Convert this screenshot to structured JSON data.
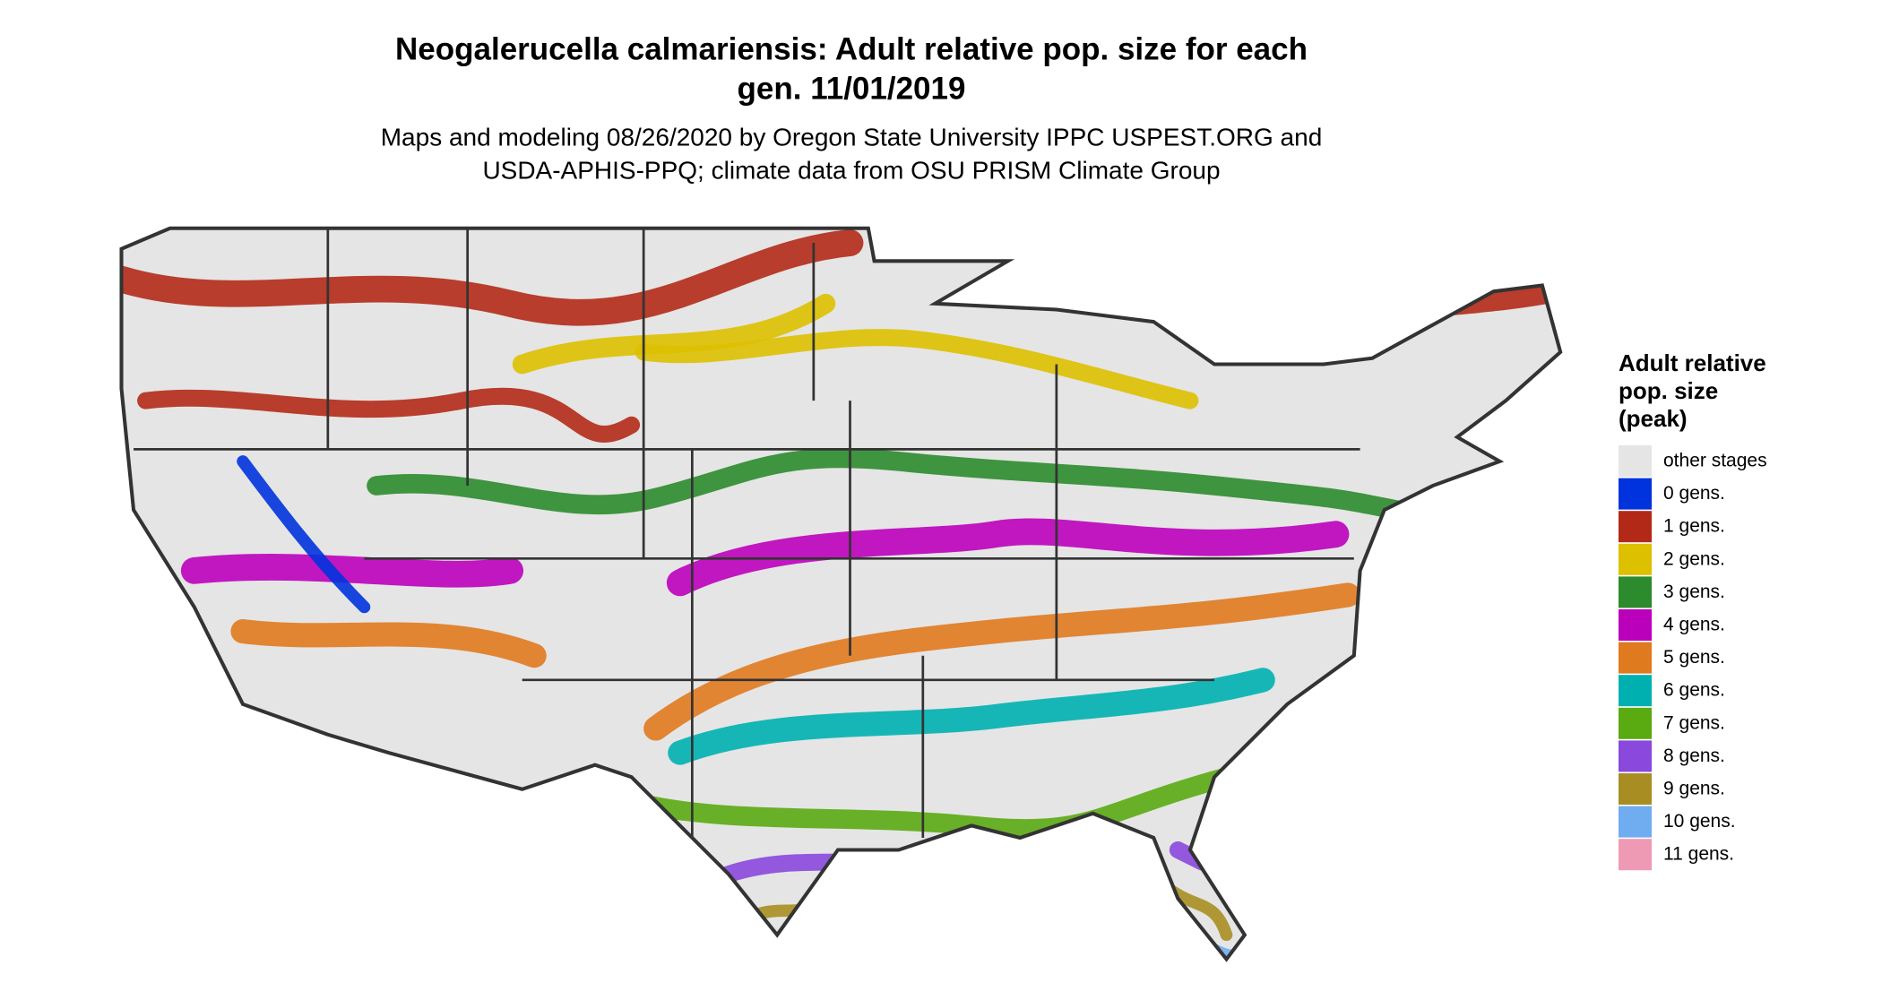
{
  "header": {
    "title": [
      "Neogalerucella calmariensis: Adult relative pop. size for each",
      "gen. 11/01/2019"
    ],
    "subtitle": [
      "Maps and modeling 08/26/2020 by Oregon State University IPPC USPEST.ORG and",
      "USDA-APHIS-PPQ; climate data from OSU PRISM Climate Group"
    ]
  },
  "legend": {
    "title": [
      "Adult relative",
      "pop. size",
      "(peak)"
    ],
    "items": [
      {
        "label": "other stages",
        "color": "#e5e5e5"
      },
      {
        "label": "0 gens.",
        "color": "#0033dd"
      },
      {
        "label": "1 gens.",
        "color": "#b22a17"
      },
      {
        "label": "2 gens.",
        "color": "#ddc000"
      },
      {
        "label": "3 gens.",
        "color": "#2c8b2c"
      },
      {
        "label": "4 gens.",
        "color": "#bb00bb"
      },
      {
        "label": "5 gens.",
        "color": "#e07a1f"
      },
      {
        "label": "6 gens.",
        "color": "#00b0b0"
      },
      {
        "label": "7 gens.",
        "color": "#5aaa12"
      },
      {
        "label": "8 gens.",
        "color": "#8a48dd"
      },
      {
        "label": "9 gens.",
        "color": "#a88e22"
      },
      {
        "label": "10 gens.",
        "color": "#70acf0"
      },
      {
        "label": "11 gens.",
        "color": "#ef9ab5"
      }
    ]
  }
}
